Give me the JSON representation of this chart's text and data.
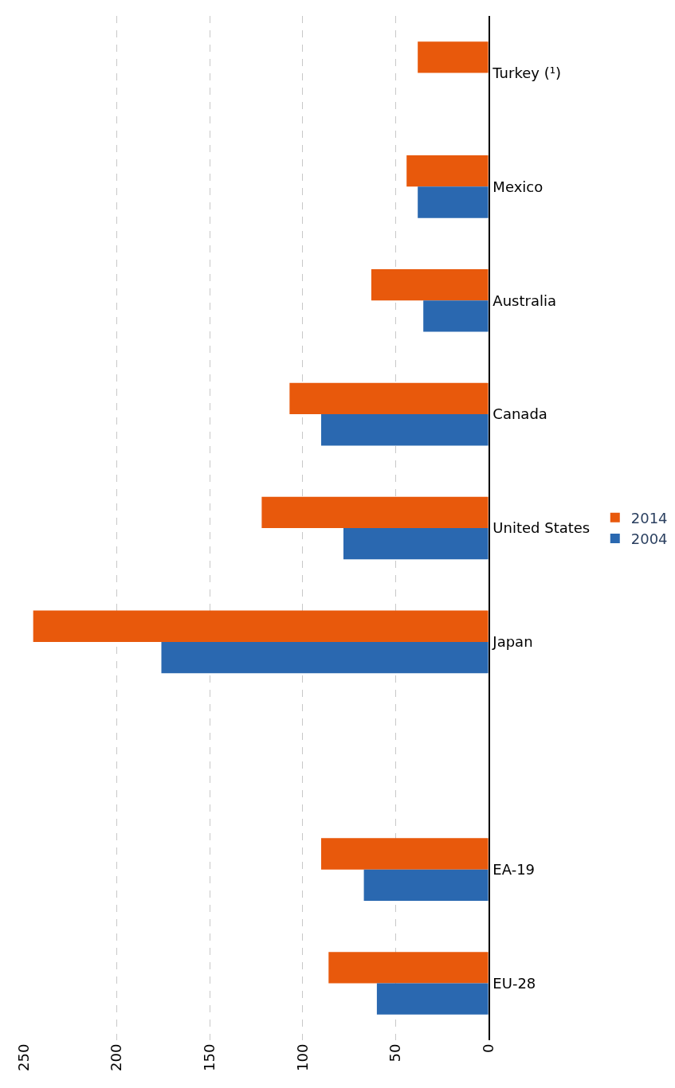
{
  "chart_data": {
    "type": "bar",
    "orientation": "horizontal",
    "categories": [
      "Turkey (¹)",
      "Mexico",
      "Australia",
      "Canada",
      "United States",
      "Japan",
      null,
      "EA-19",
      "EU-28"
    ],
    "series": [
      {
        "name": "2014",
        "color": "#e8590c",
        "values": [
          38,
          44,
          63,
          107,
          122,
          245,
          null,
          90,
          86
        ]
      },
      {
        "name": "2004",
        "color": "#2a68b0",
        "values": [
          null,
          38,
          35,
          90,
          78,
          176,
          null,
          67,
          60
        ]
      }
    ],
    "xlim": [
      250,
      0
    ],
    "xticks": [
      0,
      50,
      100,
      150,
      200,
      250
    ],
    "grid": "x",
    "legend": "right"
  }
}
